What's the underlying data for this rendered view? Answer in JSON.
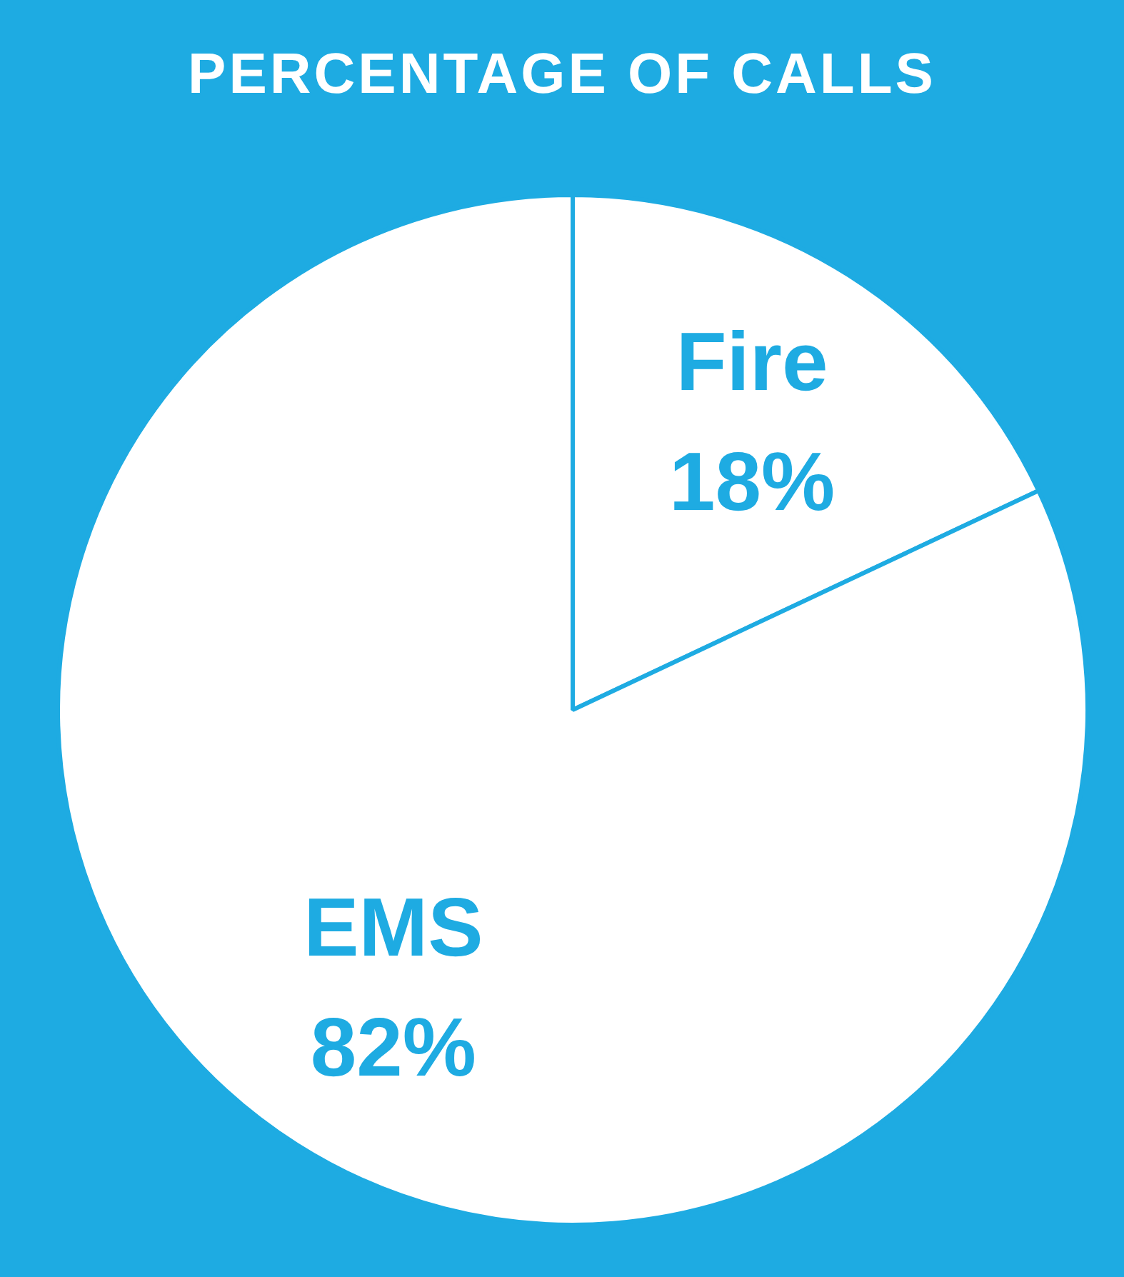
{
  "chart_data": {
    "type": "pie",
    "title": "PERCENTAGE OF CALLS",
    "categories": [
      "Fire",
      "EMS"
    ],
    "values": [
      18,
      82
    ],
    "colors": [
      "#ffffff",
      "#ffffff"
    ],
    "value_labels": [
      "18%",
      "82%"
    ],
    "legend": false
  }
}
